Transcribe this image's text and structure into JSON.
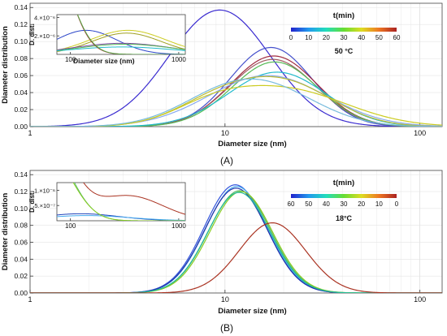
{
  "figure": {
    "panel_a_label": "(A)",
    "panel_b_label": "(B)"
  },
  "chart_data": [
    {
      "type": "line",
      "panel": "A",
      "xscale": "log",
      "xlim": [
        1,
        130
      ],
      "ylim": [
        0,
        0.145
      ],
      "xlabel": "Diameter size (nm)",
      "ylabel": "Diameter distribution",
      "x_ticks": [
        1,
        10,
        100
      ],
      "x_tick_labels": [
        "1",
        "10",
        "100"
      ],
      "y_ticks": [
        0,
        0.02,
        0.04,
        0.06,
        0.08,
        0.1,
        0.12,
        0.14
      ],
      "y_tick_labels": [
        "0.00",
        "0.02",
        "0.04",
        "0.06",
        "0.08",
        "0.10",
        "0.12",
        "0.14"
      ],
      "grid": true,
      "colorbar": {
        "title": "t(min)",
        "ticks": [
          "0",
          "10",
          "20",
          "30",
          "40",
          "50",
          "60"
        ],
        "note": "50 °C",
        "colors": [
          "#2222cc",
          "#2299ee",
          "#22ddbb",
          "#66dd33",
          "#dddd22",
          "#ee7722",
          "#aa2222"
        ]
      },
      "series": [
        {
          "color": "#3a2bd0",
          "peaks": [
            {
              "mu": 9.4,
              "sd": 0.26,
              "h": 0.137
            }
          ]
        },
        {
          "color": "#4450cc",
          "peaks": [
            {
              "mu": 17.2,
              "sd": 0.21,
              "h": 0.093
            }
          ]
        },
        {
          "color": "#a02a40",
          "peaks": [
            {
              "mu": 17.8,
              "sd": 0.22,
              "h": 0.083
            }
          ]
        },
        {
          "color": "#a05a60",
          "peaks": [
            {
              "mu": 17.6,
              "sd": 0.22,
              "h": 0.079
            }
          ]
        },
        {
          "color": "#55bb55",
          "peaks": [
            {
              "mu": 18.0,
              "sd": 0.22,
              "h": 0.076
            }
          ]
        },
        {
          "color": "#22bbcc",
          "peaks": [
            {
              "mu": 18.5,
              "sd": 0.25,
              "h": 0.064
            }
          ]
        },
        {
          "color": "#88aaee",
          "peaks": [
            {
              "mu": 16.5,
              "sd": 0.3,
              "h": 0.06
            }
          ]
        },
        {
          "color": "#bbbb33",
          "peaks": [
            {
              "mu": 9.0,
              "sd": 0.22,
              "h": 0.027
            },
            {
              "mu": 20.5,
              "sd": 0.25,
              "h": 0.049
            }
          ]
        },
        {
          "color": "#cccc22",
          "peaks": [
            {
              "mu": 8.5,
              "sd": 0.2,
              "h": 0.016
            },
            {
              "mu": 20.0,
              "sd": 0.32,
              "h": 0.044
            }
          ]
        },
        {
          "color": "#77bbdd",
          "peaks": [
            {
              "mu": 9.2,
              "sd": 0.24,
              "h": 0.024
            },
            {
              "mu": 17.0,
              "sd": 0.26,
              "h": 0.04
            }
          ]
        }
      ],
      "inset": {
        "ylabel": "D. dist.",
        "xscale": "log",
        "xlim": [
          75,
          1150
        ],
        "ylim": [
          0,
          4.3e-06
        ],
        "x_ticks": [
          100,
          1000
        ],
        "x_tick_labels": [
          "100",
          "1000"
        ],
        "y_ticks": [
          2e-06,
          4e-06
        ],
        "y_tick_labels": [
          "2.×10⁻⁶",
          "4.×10⁻⁶"
        ],
        "series": [
          {
            "color": "#2b45c8",
            "peaks": [
              {
                "mu": 140,
                "sd": 0.28,
                "h": 2.6e-06
              }
            ]
          },
          {
            "color": "#cccc22",
            "peaks": [
              {
                "mu": 340,
                "sd": 0.35,
                "h": 2.6e-06
              }
            ]
          },
          {
            "color": "#a0a020",
            "peaks": [
              {
                "mu": 330,
                "sd": 0.32,
                "h": 2.3e-06
              }
            ]
          },
          {
            "color": "#7a4aa0",
            "peaks": [
              {
                "mu": 300,
                "sd": 0.45,
                "h": 1.2e-06
              }
            ]
          },
          {
            "color": "#55bb55",
            "peaks": [
              {
                "mu": 320,
                "sd": 0.45,
                "h": 1.1e-06
              }
            ]
          },
          {
            "color": "#22bbcc",
            "peaks": [
              {
                "mu": 300,
                "sd": 0.5,
                "h": 8e-07
              }
            ]
          },
          {
            "color": "#aa2a3a",
            "peaks": [
              {
                "mu": 60,
                "sd": 0.2,
                "h": 1.2e-05
              }
            ]
          },
          {
            "color": "#55aa44",
            "peaks": [
              {
                "mu": 62,
                "sd": 0.2,
                "h": 1.1e-05
              }
            ]
          }
        ]
      }
    },
    {
      "type": "line",
      "panel": "B",
      "xscale": "log",
      "xlim": [
        1,
        130
      ],
      "ylim": [
        0,
        0.145
      ],
      "xlabel": "Diameter size (nm)",
      "ylabel": "Diameter distribution",
      "x_ticks": [
        1,
        10,
        100
      ],
      "x_tick_labels": [
        "1",
        "10",
        "100"
      ],
      "y_ticks": [
        0,
        0.02,
        0.04,
        0.06,
        0.08,
        0.1,
        0.12,
        0.14
      ],
      "y_tick_labels": [
        "0.00",
        "0.02",
        "0.04",
        "0.06",
        "0.08",
        "0.10",
        "0.12",
        "0.14"
      ],
      "grid": true,
      "colorbar": {
        "title": "t(min)",
        "ticks": [
          "60",
          "50",
          "40",
          "30",
          "20",
          "10",
          "0"
        ],
        "note": "18°C",
        "colors": [
          "#2222cc",
          "#2299ee",
          "#22ddbb",
          "#66dd33",
          "#dddd22",
          "#ee7722",
          "#aa2222"
        ]
      },
      "series": [
        {
          "color": "#3355dd",
          "peaks": [
            {
              "mu": 11.3,
              "sd": 0.16,
              "h": 0.128
            }
          ]
        },
        {
          "color": "#44aaee",
          "peaks": [
            {
              "mu": 11.5,
              "sd": 0.16,
              "h": 0.126
            }
          ]
        },
        {
          "color": "#2233aa",
          "peaks": [
            {
              "mu": 11.4,
              "sd": 0.16,
              "h": 0.124
            }
          ]
        },
        {
          "color": "#55bb66",
          "peaks": [
            {
              "mu": 11.9,
              "sd": 0.16,
              "h": 0.121
            }
          ]
        },
        {
          "color": "#88cc22",
          "peaks": [
            {
              "mu": 12.1,
              "sd": 0.16,
              "h": 0.12
            }
          ]
        },
        {
          "color": "#22bb99",
          "peaks": [
            {
              "mu": 11.8,
              "sd": 0.16,
              "h": 0.119
            }
          ]
        },
        {
          "color": "#aa3322",
          "peaks": [
            {
              "mu": 17.5,
              "sd": 0.17,
              "h": 0.083
            }
          ]
        }
      ],
      "inset": {
        "ylabel": "D. dist.",
        "xscale": "log",
        "xlim": [
          75,
          1150
        ],
        "ylim": [
          0,
          1.25e-06
        ],
        "x_ticks": [
          100,
          1000
        ],
        "x_tick_labels": [
          "100",
          "1000"
        ],
        "y_ticks": [
          5e-07,
          1e-06
        ],
        "y_tick_labels": [
          "5.×10⁻⁷",
          "1.×10⁻⁶"
        ],
        "series": [
          {
            "color": "#aa3322",
            "peaks": [
              {
                "mu": 60,
                "sd": 0.22,
                "h": 3e-06
              },
              {
                "mu": 340,
                "sd": 0.32,
                "h": 8.2e-07
              }
            ]
          },
          {
            "color": "#2244bb",
            "peaks": [
              {
                "mu": 125,
                "sd": 0.35,
                "h": 2.3e-07
              }
            ]
          },
          {
            "color": "#44aaee",
            "peaks": [
              {
                "mu": 140,
                "sd": 0.4,
                "h": 1.7e-07
              }
            ]
          },
          {
            "color": "#55bb66",
            "peaks": [
              {
                "mu": 60,
                "sd": 0.22,
                "h": 2.5e-06
              }
            ]
          },
          {
            "color": "#88cc22",
            "peaks": [
              {
                "mu": 62,
                "sd": 0.22,
                "h": 2.2e-06
              }
            ]
          }
        ]
      }
    }
  ]
}
